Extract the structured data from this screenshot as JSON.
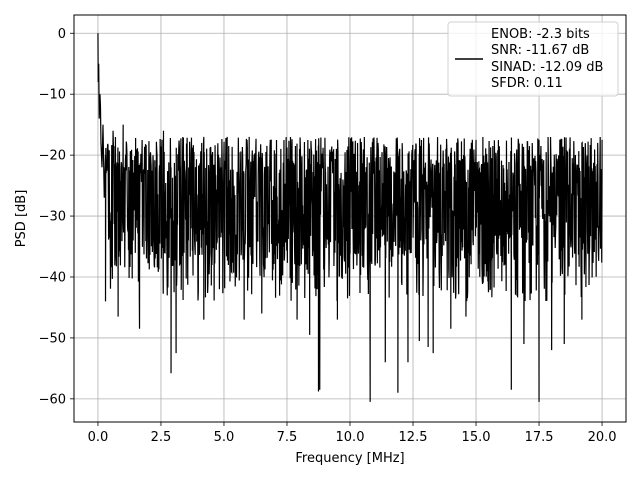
{
  "chart_data": {
    "type": "line",
    "xlabel": "Frequency [MHz]",
    "ylabel": "PSD [dB]",
    "xlim": [
      -0.95,
      20.95
    ],
    "ylim": [
      -63.8,
      3.0
    ],
    "x_ticks": [
      0.0,
      2.5,
      5.0,
      7.5,
      10.0,
      12.5,
      15.0,
      17.5,
      20.0
    ],
    "x_tick_labels": [
      "0.0",
      "2.5",
      "5.0",
      "7.5",
      "10.0",
      "12.5",
      "15.0",
      "17.5",
      "20.0"
    ],
    "y_ticks": [
      0,
      -10,
      -20,
      -30,
      -40,
      -50,
      -60
    ],
    "y_tick_labels": [
      "0",
      "−10",
      "−20",
      "−30",
      "−40",
      "−50",
      "−60"
    ],
    "grid": true,
    "legend_position": "top-right",
    "legend_lines": [
      "ENOB: -2.3 bits",
      "SNR: -11.67 dB",
      "SINAD: -12.09 dB",
      "SFDR: 0.11"
    ],
    "series": [
      {
        "color": "#000000",
        "x_start": 0.0,
        "x_end": 20.0,
        "noise_floor_db": -29.5,
        "noise_top_db": -17.0,
        "noise_bottom_db": -44.0,
        "dc_peak_db": 0.0,
        "initial_points": [
          [
            0.0,
            0.0
          ],
          [
            0.01,
            -8.0
          ],
          [
            0.03,
            -5.0
          ],
          [
            0.05,
            -14.0
          ],
          [
            0.08,
            -10.0
          ],
          [
            0.12,
            -18.0
          ],
          [
            0.16,
            -22.0
          ],
          [
            0.2,
            -15.0
          ],
          [
            0.25,
            -27.0
          ],
          [
            0.3,
            -20.0
          ]
        ],
        "deep_dips": [
          [
            0.3,
            -44.0
          ],
          [
            0.8,
            -46.5
          ],
          [
            1.65,
            -48.5
          ],
          [
            2.9,
            -55.8
          ],
          [
            3.1,
            -52.5
          ],
          [
            4.2,
            -47.0
          ],
          [
            5.8,
            -47.0
          ],
          [
            6.5,
            -46.0
          ],
          [
            7.9,
            -47.0
          ],
          [
            8.4,
            -49.5
          ],
          [
            8.75,
            -58.8
          ],
          [
            8.8,
            -58.5
          ],
          [
            9.5,
            -47.0
          ],
          [
            10.8,
            -60.5
          ],
          [
            11.4,
            -54.0
          ],
          [
            11.9,
            -59.0
          ],
          [
            12.3,
            -54.0
          ],
          [
            12.75,
            -50.5
          ],
          [
            13.1,
            -51.5
          ],
          [
            13.3,
            -52.5
          ],
          [
            14.0,
            -48.5
          ],
          [
            14.6,
            -46.5
          ],
          [
            16.4,
            -58.5
          ],
          [
            16.9,
            -51.0
          ],
          [
            17.5,
            -60.5
          ],
          [
            18.0,
            -52.0
          ],
          [
            18.5,
            -51.0
          ],
          [
            19.2,
            -47.0
          ]
        ],
        "high_peaks": [
          [
            0.1,
            -12.0
          ],
          [
            0.6,
            -16.0
          ],
          [
            1.0,
            -15.0
          ],
          [
            2.6,
            -16.0
          ],
          [
            4.2,
            -17.0
          ],
          [
            6.0,
            -17.0
          ],
          [
            8.0,
            -19.0
          ],
          [
            10.3,
            -18.0
          ],
          [
            12.8,
            -18.5
          ],
          [
            15.0,
            -17.5
          ],
          [
            17.5,
            -17.5
          ],
          [
            19.2,
            -18.0
          ],
          [
            20.0,
            -17.5
          ]
        ]
      }
    ]
  }
}
